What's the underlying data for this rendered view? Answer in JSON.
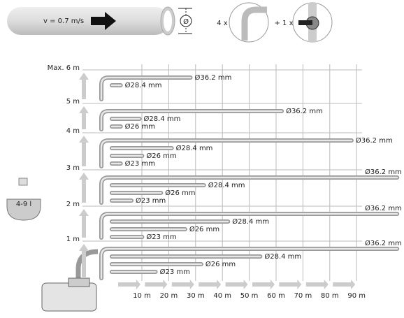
{
  "top": {
    "velocity": "v = 0.7 m/s",
    "diameter_symbol": "Ø",
    "elbows": "4 x",
    "valves": "+ 1 x"
  },
  "tank_label": "4-9 l",
  "levels": [
    {
      "label": "Max. 6 m",
      "pipes": [
        {
          "label": "Ø36.2 mm",
          "length_m": 28
        },
        {
          "label": "Ø28.4 mm",
          "length_m": 2
        }
      ]
    },
    {
      "label": "5 m",
      "pipes": [
        {
          "label": "Ø36.2 mm",
          "length_m": 62
        },
        {
          "label": "Ø28.4 mm",
          "length_m": 9
        },
        {
          "label": "Ø26 mm",
          "length_m": 2
        }
      ]
    },
    {
      "label": "4 m",
      "pipes": [
        {
          "label": "Ø36.2 mm",
          "length_m": 88
        },
        {
          "label": "Ø28.4 mm",
          "length_m": 21
        },
        {
          "label": "Ø26 mm",
          "length_m": 10
        },
        {
          "label": "Ø23 mm",
          "length_m": 2
        }
      ]
    },
    {
      "label": "3 m",
      "pipes": [
        {
          "label": "Ø36.2 mm",
          "length_m": 105
        },
        {
          "label": "Ø28.4 mm",
          "length_m": 33
        },
        {
          "label": "Ø26 mm",
          "length_m": 17
        },
        {
          "label": "Ø23 mm",
          "length_m": 6
        }
      ]
    },
    {
      "label": "2 m",
      "pipes": [
        {
          "label": "Ø36.2 mm",
          "length_m": 105
        },
        {
          "label": "Ø28.4 mm",
          "length_m": 42
        },
        {
          "label": "Ø26 mm",
          "length_m": 26
        },
        {
          "label": "Ø23 mm",
          "length_m": 10
        }
      ]
    },
    {
      "label": "1 m",
      "pipes": [
        {
          "label": "Ø36.2 mm",
          "length_m": 105
        },
        {
          "label": "Ø28.4 mm",
          "length_m": 54
        },
        {
          "label": "Ø26 mm",
          "length_m": 32
        },
        {
          "label": "Ø23 mm",
          "length_m": 15
        }
      ]
    }
  ],
  "x_axis": {
    "labels": [
      "10 m",
      "20 m",
      "30 m",
      "40 m",
      "50 m",
      "60 m",
      "70 m",
      "80 m",
      "90 m"
    ]
  }
}
